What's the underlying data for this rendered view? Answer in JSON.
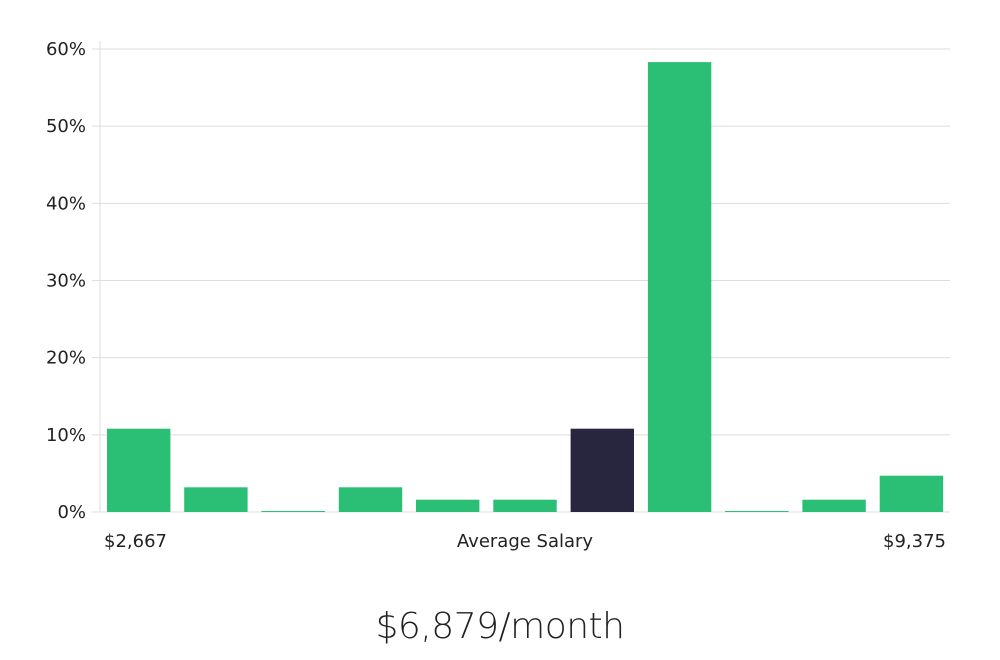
{
  "chart_data": {
    "type": "bar",
    "categories": [
      "1",
      "2",
      "3",
      "4",
      "5",
      "6",
      "7",
      "8",
      "9",
      "10",
      "11"
    ],
    "values": [
      10.8,
      3.2,
      0.1,
      3.2,
      1.6,
      1.6,
      10.8,
      58.3,
      0.1,
      1.6,
      4.7
    ],
    "highlight_index": 6,
    "ylim": [
      0,
      60
    ],
    "yticks": [
      0,
      10,
      20,
      30,
      40,
      50,
      60
    ],
    "ytick_suffix": "%",
    "grid": true,
    "x_min_label": "$2,667",
    "xlabel": "Average Salary",
    "x_max_label": "$9,375",
    "colors": {
      "bar": "#2bbf76",
      "highlight": "#28253f",
      "grid": "#dddddd"
    }
  },
  "value_text": "$6,879/month"
}
